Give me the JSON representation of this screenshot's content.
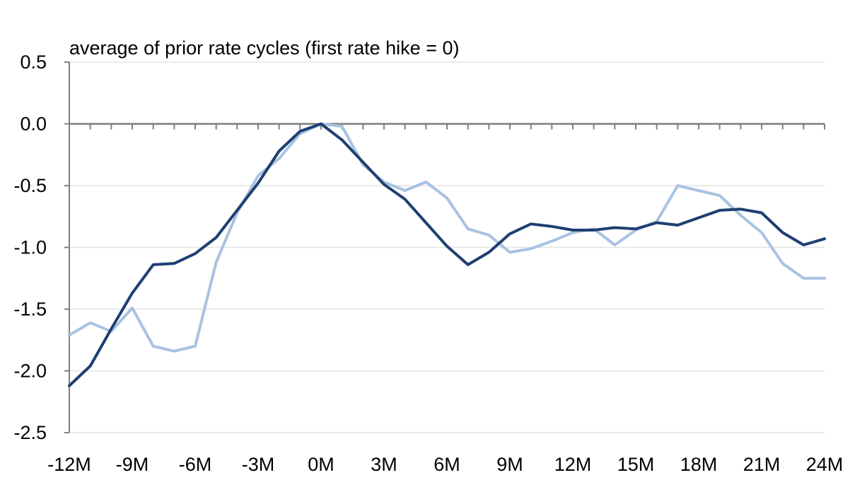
{
  "chart_data": {
    "type": "line",
    "title": "",
    "subtitle": "average of prior rate cycles (first rate hike = 0)",
    "xlabel": "",
    "ylabel": "",
    "x": [
      -12,
      -11,
      -10,
      -9,
      -8,
      -7,
      -6,
      -5,
      -4,
      -3,
      -2,
      -1,
      0,
      1,
      2,
      3,
      4,
      5,
      6,
      7,
      8,
      9,
      10,
      11,
      12,
      13,
      14,
      15,
      16,
      17,
      18,
      19,
      20,
      21,
      22,
      23,
      24
    ],
    "x_ticks": [
      -12,
      -9,
      -6,
      -3,
      0,
      3,
      6,
      9,
      12,
      15,
      18,
      21,
      24
    ],
    "x_tick_labels": [
      "-12M",
      "-9M",
      "-6M",
      "-3M",
      "0M",
      "3M",
      "6M",
      "9M",
      "12M",
      "15M",
      "18M",
      "21M",
      "24M"
    ],
    "ylim": [
      -2.5,
      0.5
    ],
    "y_ticks": [
      0.5,
      0.0,
      -0.5,
      -1.0,
      -1.5,
      -2.0,
      -2.5
    ],
    "y_tick_labels": [
      "0.5",
      "0.0",
      "-0.5",
      "-1.0",
      "-1.5",
      "-2.0",
      "-2.5"
    ],
    "grid": "horizontal",
    "series": [
      {
        "color": "#1f3f73",
        "values": [
          -2.12,
          -1.96,
          -1.66,
          -1.37,
          -1.14,
          -1.13,
          -1.05,
          -0.92,
          -0.7,
          -0.48,
          -0.22,
          -0.06,
          0.0,
          -0.13,
          -0.31,
          -0.49,
          -0.61,
          -0.8,
          -0.99,
          -1.14,
          -1.04,
          -0.89,
          -0.81,
          -0.83,
          -0.86,
          -0.86,
          -0.84,
          -0.85,
          -0.8,
          -0.82,
          -0.76,
          -0.7,
          -0.69,
          -0.72,
          -0.88,
          -0.98,
          -0.93
        ]
      },
      {
        "color": "#a8c2e2",
        "values": [
          -1.71,
          -1.61,
          -1.68,
          -1.49,
          -1.8,
          -1.84,
          -1.8,
          -1.12,
          -0.72,
          -0.42,
          -0.28,
          -0.08,
          0.0,
          -0.02,
          -0.33,
          -0.47,
          -0.54,
          -0.47,
          -0.6,
          -0.85,
          -0.9,
          -1.04,
          -1.01,
          -0.95,
          -0.88,
          -0.85,
          -0.98,
          -0.86,
          -0.79,
          -0.5,
          -0.54,
          -0.58,
          -0.74,
          -0.88,
          -1.13,
          -1.25,
          -1.25
        ]
      }
    ]
  }
}
